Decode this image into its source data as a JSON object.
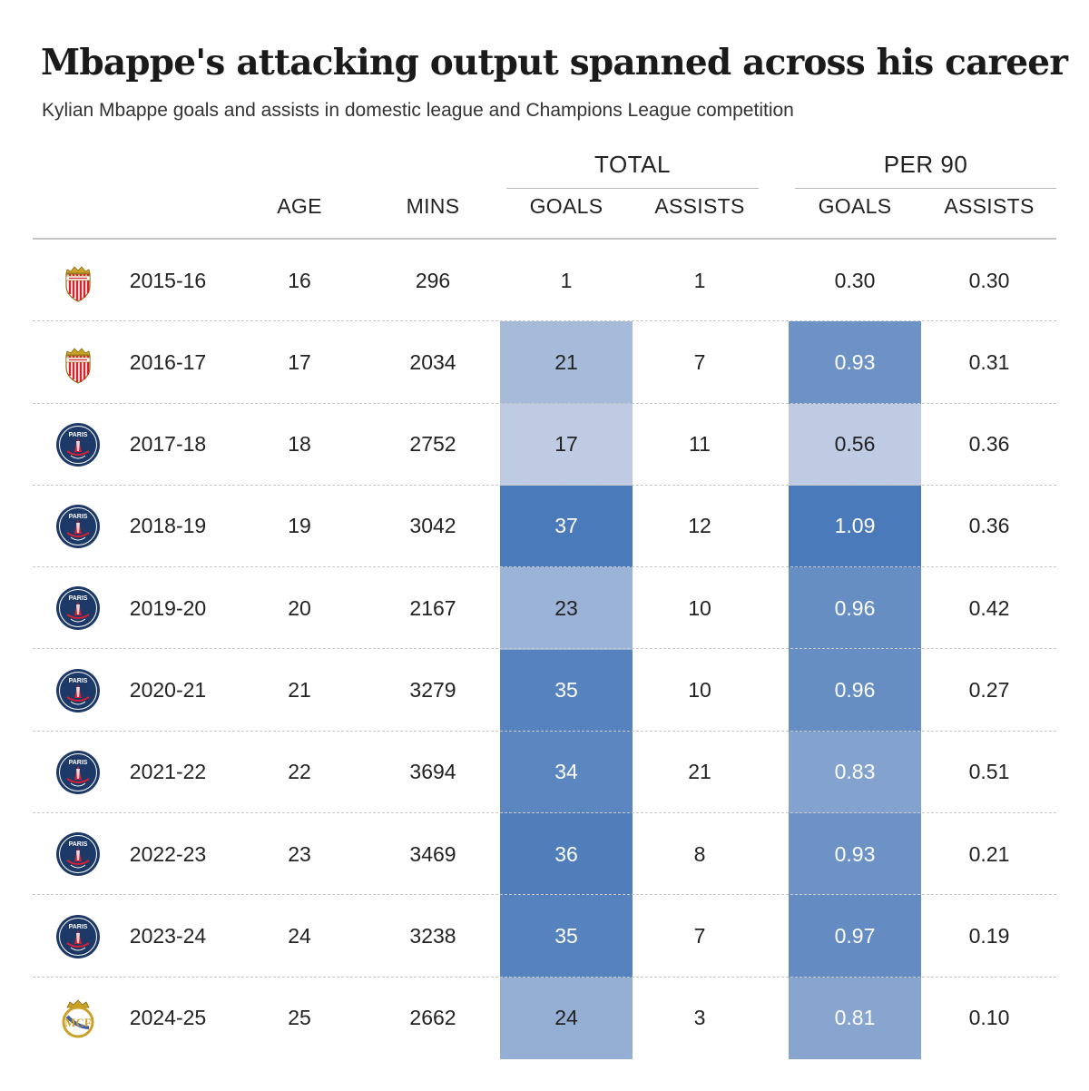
{
  "title": "Mbappe's attacking output spanned across his career",
  "subtitle": "Kylian Mbappe goals and assists in domestic league and Champions League competition",
  "column_groups": {
    "total": "TOTAL",
    "per90": "PER 90"
  },
  "column_headers": {
    "age": "AGE",
    "mins": "MINS",
    "total_goals": "GOALS",
    "total_assists": "ASSISTS",
    "per90_goals": "GOALS",
    "per90_assists": "ASSISTS"
  },
  "colors": {
    "shade_low": "#d2d9ea",
    "shade_high": "#4a7ab9",
    "text_dark": "#222222",
    "text_light": "#ffffff",
    "monaco_red": "#d9232d",
    "psg_navy": "#1c3967",
    "psg_red": "#d71f33",
    "real_gold": "#c9a227"
  },
  "chart_data": {
    "type": "table",
    "columns": [
      "crest",
      "season",
      "age",
      "mins",
      "total_goals",
      "total_assists",
      "per90_goals",
      "per90_assists"
    ],
    "rows": [
      {
        "crest": "monaco-crest-icon",
        "season": "2015-16",
        "age": "16",
        "mins": "296",
        "total_goals": "1",
        "total_assists": "1",
        "per90_goals": "0.30",
        "per90_assists": "0.30"
      },
      {
        "crest": "monaco-crest-icon",
        "season": "2016-17",
        "age": "17",
        "mins": "2034",
        "total_goals": "21",
        "total_assists": "7",
        "per90_goals": "0.93",
        "per90_assists": "0.31"
      },
      {
        "crest": "psg-crest-icon",
        "season": "2017-18",
        "age": "18",
        "mins": "2752",
        "total_goals": "17",
        "total_assists": "11",
        "per90_goals": "0.56",
        "per90_assists": "0.36"
      },
      {
        "crest": "psg-crest-icon",
        "season": "2018-19",
        "age": "19",
        "mins": "3042",
        "total_goals": "37",
        "total_assists": "12",
        "per90_goals": "1.09",
        "per90_assists": "0.36"
      },
      {
        "crest": "psg-crest-icon",
        "season": "2019-20",
        "age": "20",
        "mins": "2167",
        "total_goals": "23",
        "total_assists": "10",
        "per90_goals": "0.96",
        "per90_assists": "0.42"
      },
      {
        "crest": "psg-crest-icon",
        "season": "2020-21",
        "age": "21",
        "mins": "3279",
        "total_goals": "35",
        "total_assists": "10",
        "per90_goals": "0.96",
        "per90_assists": "0.27"
      },
      {
        "crest": "psg-crest-icon",
        "season": "2021-22",
        "age": "22",
        "mins": "3694",
        "total_goals": "34",
        "total_assists": "21",
        "per90_goals": "0.83",
        "per90_assists": "0.51"
      },
      {
        "crest": "psg-crest-icon",
        "season": "2022-23",
        "age": "23",
        "mins": "3469",
        "total_goals": "36",
        "total_assists": "8",
        "per90_goals": "0.93",
        "per90_assists": "0.21"
      },
      {
        "crest": "psg-crest-icon",
        "season": "2023-24",
        "age": "24",
        "mins": "3238",
        "total_goals": "35",
        "total_assists": "7",
        "per90_goals": "0.97",
        "per90_assists": "0.19"
      },
      {
        "crest": "real-madrid-crest-icon",
        "season": "2024-25",
        "age": "25",
        "mins": "2662",
        "total_goals": "24",
        "total_assists": "3",
        "per90_goals": "0.81",
        "per90_assists": "0.10"
      }
    ],
    "heatmap_columns": [
      "total_goals",
      "per90_goals"
    ]
  }
}
